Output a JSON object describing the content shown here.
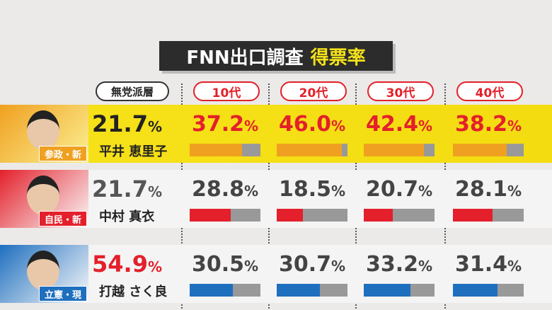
{
  "header": {
    "title": "FNN出口調査",
    "highlight": "得票率"
  },
  "group_label": "無党派層",
  "unit": "%",
  "columns": [
    "10代",
    "20代",
    "30代",
    "40代"
  ],
  "xlim": [
    0,
    50
  ],
  "candidates": [
    {
      "tag": "参政・新",
      "name": "平井 恵里子",
      "total": 21.7,
      "values": [
        37.2,
        46.0,
        42.4,
        38.2
      ],
      "value_labels": [
        "37.2",
        "46.0",
        "42.4",
        "38.2"
      ],
      "color": "#f0a020"
    },
    {
      "tag": "自民・新",
      "name": "中村 真衣",
      "total": 21.7,
      "values": [
        28.8,
        18.5,
        20.7,
        28.1
      ],
      "value_labels": [
        "28.8",
        "18.5",
        "20.7",
        "28.1"
      ],
      "color": "#e3202b"
    },
    {
      "tag": "立憲・現",
      "name": "打越 さく良",
      "total": 54.9,
      "values": [
        30.5,
        30.7,
        33.2,
        31.4
      ],
      "value_labels": [
        "30.5",
        "30.7",
        "33.2",
        "31.4"
      ],
      "color": "#1f6fbf"
    }
  ]
}
